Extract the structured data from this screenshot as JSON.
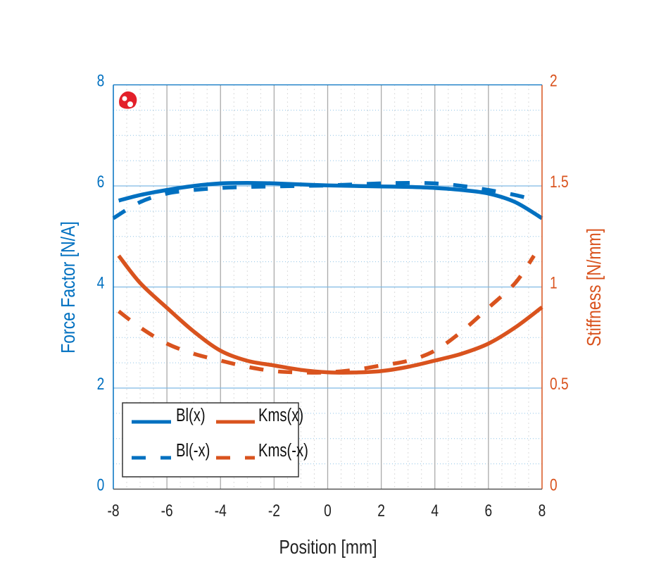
{
  "chart_data": {
    "type": "line",
    "xlabel": "Position [mm]",
    "ylabel": "Force Factor [N/A]",
    "y2label": "Stiffness [N/mm]",
    "xlim": [
      -8,
      8
    ],
    "ylim": [
      0,
      8
    ],
    "y2lim": [
      0,
      2
    ],
    "xticks": [
      "-8",
      "-6",
      "-4",
      "-2",
      "0",
      "2",
      "4",
      "6",
      "8"
    ],
    "yticks": [
      "0",
      "2",
      "4",
      "6",
      "8"
    ],
    "y2ticks": [
      "0",
      "0.5",
      "1",
      "1.5",
      "2"
    ],
    "grid": true,
    "legend_position": "bottom-left",
    "colors": {
      "left_axis": "#0070c0",
      "right_axis": "#d9531e",
      "logo": "#e3202a"
    },
    "logo_icon": "red-blob-logo",
    "series": [
      {
        "name": "Bl(x)",
        "axis": "left",
        "style": "solid",
        "color": "#0070c0",
        "x": [
          -7.8,
          -7,
          -6,
          -5,
          -4,
          -3,
          -2,
          -1,
          0,
          1,
          2,
          3,
          4,
          5,
          6,
          7,
          8
        ],
        "y": [
          5.71,
          5.82,
          5.92,
          6.0,
          6.05,
          6.06,
          6.05,
          6.03,
          6.01,
          6.0,
          5.99,
          5.98,
          5.96,
          5.92,
          5.85,
          5.68,
          5.36
        ]
      },
      {
        "name": "Kms(x)",
        "axis": "right",
        "style": "solid",
        "color": "#d9531e",
        "x": [
          -7.8,
          -7,
          -6,
          -5,
          -4,
          -3,
          -2,
          -1,
          0,
          1,
          2,
          3,
          4,
          5,
          6,
          7,
          8
        ],
        "y": [
          1.155,
          1.02,
          0.897,
          0.78,
          0.685,
          0.635,
          0.612,
          0.59,
          0.578,
          0.577,
          0.584,
          0.605,
          0.636,
          0.67,
          0.72,
          0.8,
          0.9
        ]
      },
      {
        "name": "Bl(-x)",
        "axis": "left",
        "style": "dashed",
        "color": "#0070c0",
        "x": [
          -8,
          -7,
          -6,
          -5,
          -4,
          -3,
          -2,
          -1,
          0,
          1,
          2,
          3,
          4,
          5,
          6,
          7,
          7.8
        ],
        "y": [
          5.36,
          5.68,
          5.85,
          5.92,
          5.96,
          5.98,
          5.99,
          6.0,
          6.01,
          6.03,
          6.05,
          6.06,
          6.05,
          6.0,
          5.92,
          5.82,
          5.71
        ]
      },
      {
        "name": "Kms(-x)",
        "axis": "right",
        "style": "dashed",
        "color": "#d9531e",
        "x": [
          -7.8,
          -7,
          -6,
          -5,
          -4,
          -3,
          -2,
          -1,
          0,
          1,
          2,
          3,
          4,
          5,
          6,
          7,
          7.7
        ],
        "y": [
          0.88,
          0.8,
          0.72,
          0.67,
          0.636,
          0.605,
          0.584,
          0.577,
          0.578,
          0.59,
          0.612,
          0.635,
          0.685,
          0.78,
          0.897,
          1.02,
          1.155
        ]
      }
    ]
  }
}
